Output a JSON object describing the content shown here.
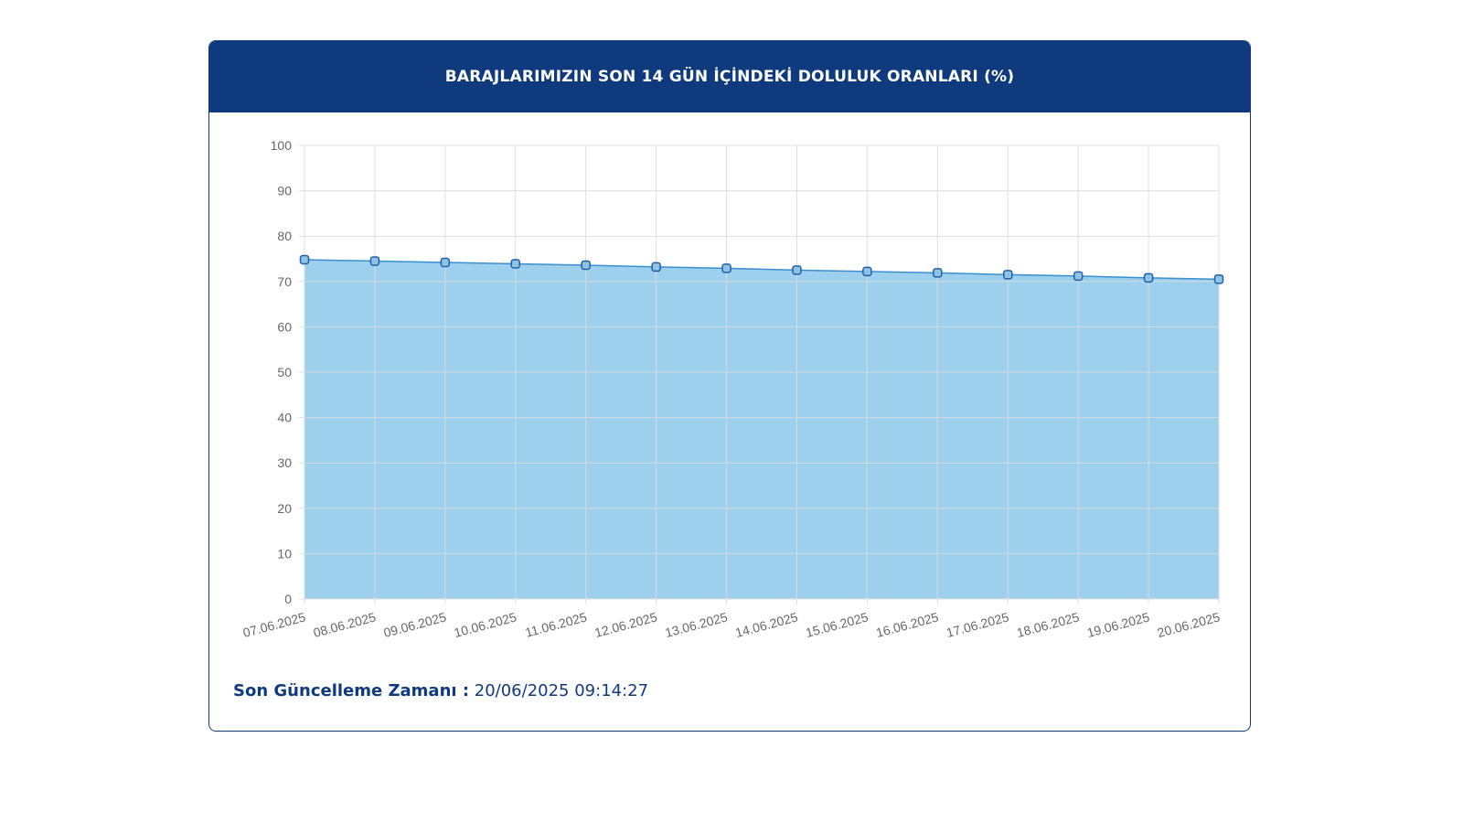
{
  "header": {
    "title": "BARAJLARIMIZIN SON 14 GÜN İÇİNDEKİ DOLULUK ORANLARI (%)"
  },
  "footer": {
    "label": "Son Güncelleme Zamanı :",
    "value": "20/06/2025 09:14:27"
  },
  "colors": {
    "header_bg": "#0f3a7e",
    "area_fill": "#9dd0ec",
    "line": "#3a8fd0",
    "point_stroke": "#1f5fa8",
    "grid": "#dcdcdc"
  },
  "chart_data": {
    "type": "area",
    "title": "BARAJLARIMIZIN SON 14 GÜN İÇİNDEKİ DOLULUK ORANLARI (%)",
    "xlabel": "",
    "ylabel": "",
    "ylim": [
      0,
      100
    ],
    "yticks": [
      0,
      10,
      20,
      30,
      40,
      50,
      60,
      70,
      80,
      90,
      100
    ],
    "grid": true,
    "categories": [
      "07.06.2025",
      "08.06.2025",
      "09.06.2025",
      "10.06.2025",
      "11.06.2025",
      "12.06.2025",
      "13.06.2025",
      "14.06.2025",
      "15.06.2025",
      "16.06.2025",
      "17.06.2025",
      "18.06.2025",
      "19.06.2025",
      "20.06.2025"
    ],
    "series": [
      {
        "values": [
          74.8,
          74.5,
          74.2,
          73.9,
          73.6,
          73.2,
          72.9,
          72.5,
          72.2,
          71.9,
          71.5,
          71.2,
          70.8,
          70.5
        ]
      }
    ]
  }
}
